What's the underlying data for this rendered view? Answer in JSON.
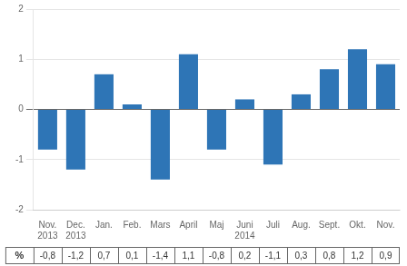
{
  "chart_data": {
    "type": "bar",
    "categories": [
      "Nov.\n2013",
      "Dec.\n2013",
      "Jan.",
      "Feb.",
      "Mars",
      "April",
      "Maj",
      "Juni\n2014",
      "Juli",
      "Aug.",
      "Sept.",
      "Okt.",
      "Nov."
    ],
    "values": [
      -0.8,
      -1.2,
      0.7,
      0.1,
      -1.4,
      1.1,
      -0.8,
      0.2,
      -1.1,
      0.3,
      0.8,
      1.2,
      0.9
    ],
    "value_labels": [
      "-0,8",
      "-1,2",
      "0,7",
      "0,1",
      "-1,4",
      "1,1",
      "-0,8",
      "0,2",
      "-1,1",
      "0,3",
      "0,8",
      "1,2",
      "0,9"
    ],
    "ylabel": "%",
    "color": "#2E75B6",
    "ylim": [
      -2,
      2
    ],
    "yticks": [
      -2,
      -1,
      0,
      1,
      2
    ],
    "grid": true
  }
}
